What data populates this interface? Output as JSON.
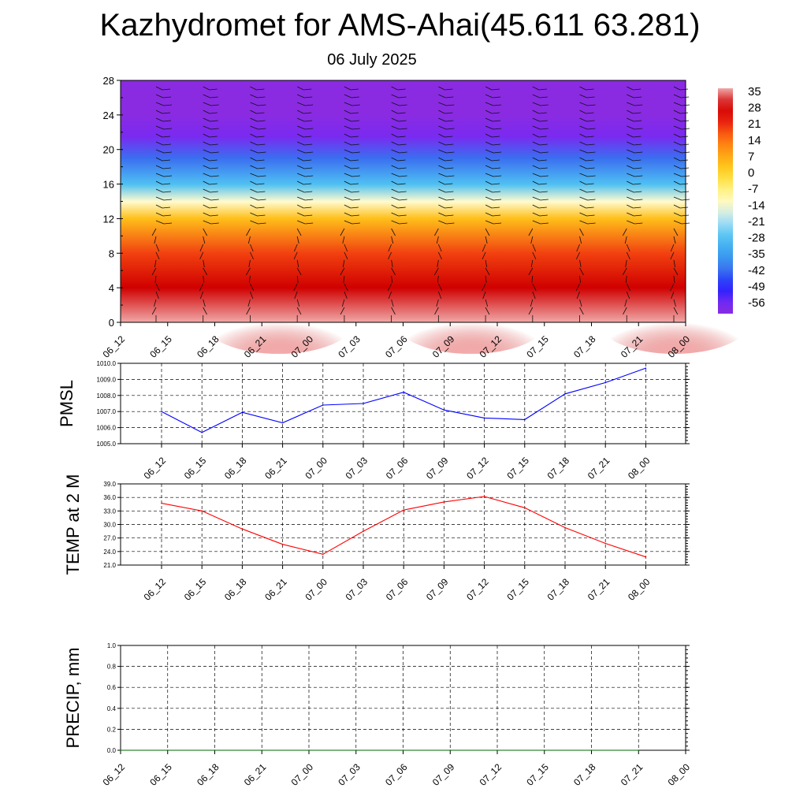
{
  "header": {
    "title": "Kazhydromet for AMS-Ahai(45.611 63.281)",
    "subtitle": "06 July 2025"
  },
  "colors": {
    "pmsl_line": "#0000ff",
    "temp_line": "#ff0000",
    "precip_line": "#006400",
    "grid": "#000000"
  },
  "chart_data": [
    {
      "id": "upper-air",
      "type": "heatmap",
      "title": "",
      "xlabel": "",
      "ylabel": "",
      "x_tick_labels": [
        "06_12",
        "06_15",
        "06_18",
        "06_21",
        "07_00",
        "07_03",
        "07_06",
        "07_09",
        "07_12",
        "07_15",
        "07_18",
        "07_21",
        "08_00"
      ],
      "y_ticks": [
        0,
        4,
        8,
        12,
        16,
        20,
        24,
        28
      ],
      "ylim": [
        0,
        28
      ],
      "colorbar_labels": [
        "35",
        "28",
        "21",
        "14",
        "7",
        "0",
        "-7",
        "-14",
        "-21",
        "-28",
        "-35",
        "-42",
        "-49",
        "-56"
      ],
      "temperature_profile_by_height": [
        {
          "height": 0,
          "value": 35
        },
        {
          "height": 4,
          "value": 28
        },
        {
          "height": 8,
          "value": 18
        },
        {
          "height": 12,
          "value": 3
        },
        {
          "height": 14,
          "value": -14
        },
        {
          "height": 16,
          "value": -28
        },
        {
          "height": 19,
          "value": -42
        },
        {
          "height": 21.5,
          "value": -56
        },
        {
          "height": 24,
          "value": -60
        },
        {
          "height": 28,
          "value": -60
        }
      ],
      "wind_barbs": "shown"
    },
    {
      "id": "pmsl",
      "type": "line",
      "ylabel": "PMSL",
      "x_tick_labels": [
        "06_12",
        "06_15",
        "06_18",
        "06_21",
        "07_00",
        "07_03",
        "07_06",
        "07_09",
        "07_12",
        "07_15",
        "07_18",
        "07_21",
        "08_00"
      ],
      "y_tick_labels": [
        "1005.0",
        "1006.0",
        "1007.0",
        "1008.0",
        "1009.0",
        "1010.0"
      ],
      "ylim": [
        1005.0,
        1010.0
      ],
      "grid": true,
      "values": [
        1007.0,
        1005.7,
        1006.95,
        1006.3,
        1007.4,
        1007.5,
        1008.2,
        1007.1,
        1006.6,
        1006.5,
        1008.1,
        1008.8,
        1009.7
      ]
    },
    {
      "id": "temp",
      "type": "line",
      "ylabel": "TEMP at 2 M",
      "x_tick_labels": [
        "06_12",
        "06_15",
        "06_18",
        "06_21",
        "07_00",
        "07_03",
        "07_06",
        "07_09",
        "07_12",
        "07_15",
        "07_18",
        "07_21",
        "08_00"
      ],
      "y_tick_labels": [
        "21.0",
        "24.0",
        "27.0",
        "30.0",
        "33.0",
        "36.0",
        "39.0"
      ],
      "ylim": [
        21.0,
        39.0
      ],
      "grid": true,
      "values": [
        34.7,
        33.0,
        29.0,
        25.6,
        23.4,
        28.5,
        33.2,
        35.0,
        36.2,
        33.7,
        29.3,
        25.8,
        22.8
      ]
    },
    {
      "id": "precip",
      "type": "line",
      "ylabel": "PRECIP, mm",
      "x_tick_labels": [
        "06_12",
        "06_15",
        "06_18",
        "06_21",
        "07_00",
        "07_03",
        "07_06",
        "07_09",
        "07_12",
        "07_15",
        "07_18",
        "07_21",
        "08_00"
      ],
      "y_tick_labels": [
        "0.0",
        "0.2",
        "0.4",
        "0.6",
        "0.8",
        "1.0"
      ],
      "ylim": [
        0.0,
        1.0
      ],
      "grid": true,
      "values": [
        0,
        0,
        0,
        0,
        0,
        0,
        0,
        0,
        0,
        0,
        0,
        0
      ]
    }
  ]
}
